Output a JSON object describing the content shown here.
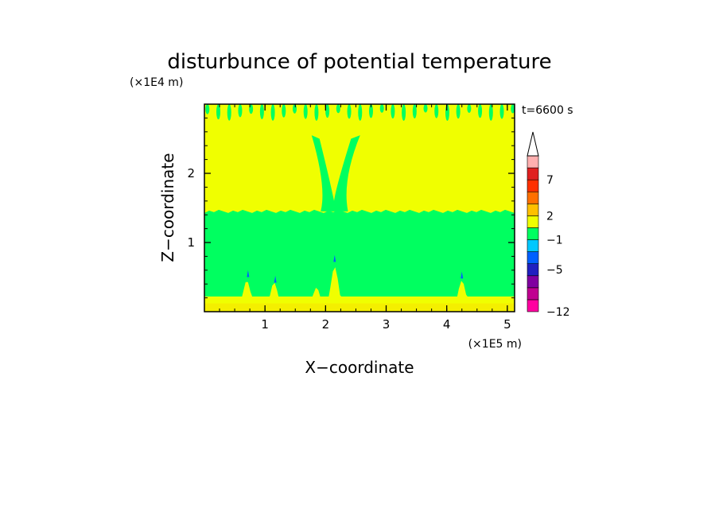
{
  "chart_data": {
    "type": "heatmap",
    "title": "disturbunce of potential temperature",
    "xlabel": "X−coordinate",
    "ylabel": "Z−coordinate",
    "x_unit": "(×1E5 m)",
    "y_unit": "(×1E4 m)",
    "time_label": "t=6600 s",
    "xlim": [
      0,
      5.12
    ],
    "ylim": [
      0,
      3.0
    ],
    "x_ticks": [
      1,
      2,
      3,
      4,
      5
    ],
    "y_ticks": [
      1,
      2
    ],
    "x_tick_labels": [
      "1",
      "2",
      "3",
      "4",
      "5"
    ],
    "y_tick_labels": [
      "1",
      "2"
    ],
    "colorbar": {
      "extend": "max",
      "levels": [
        {
          "color": "#ff00a0"
        },
        {
          "color": "#c00090"
        },
        {
          "color": "#8000a0"
        },
        {
          "color": "#2020c0"
        },
        {
          "color": "#0060ff"
        },
        {
          "color": "#00c8ff"
        },
        {
          "color": "#00ff60"
        },
        {
          "color": "#f0ff00"
        },
        {
          "color": "#ffc000"
        },
        {
          "color": "#ff7000"
        },
        {
          "color": "#ff3000"
        },
        {
          "color": "#e02020"
        },
        {
          "color": "#ffb0b0"
        }
      ],
      "labels": [
        {
          "text": "−12",
          "boundary": 0
        },
        {
          "text": "−5",
          "boundary": 3.5
        },
        {
          "text": "−1",
          "boundary": 6
        },
        {
          "text": "2",
          "boundary": 8
        },
        {
          "text": "7",
          "boundary": 11
        }
      ]
    },
    "fields": {
      "background_color": "#f0ff00",
      "band_color": "#00ff60",
      "band_z_range": [
        0.22,
        1.45
      ],
      "plume_center_x": 2.12
    }
  }
}
